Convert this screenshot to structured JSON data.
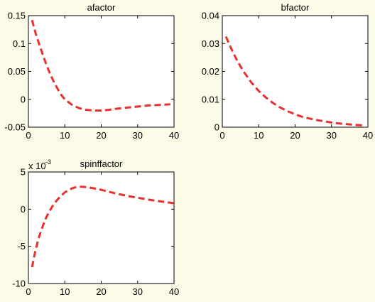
{
  "colors": {
    "background": "#fcfbe8",
    "line": "#e8302e"
  },
  "chart_data": [
    {
      "type": "line",
      "title": "afactor",
      "xlabel": "",
      "ylabel": "",
      "xlim": [
        0,
        40
      ],
      "ylim": [
        -0.05,
        0.15
      ],
      "xticks": [
        0,
        10,
        20,
        30,
        40
      ],
      "yticks": [
        -0.05,
        0,
        0.05,
        0.1,
        0.15
      ],
      "xtick_labels": [
        "0",
        "10",
        "20",
        "30",
        "40"
      ],
      "ytick_labels": [
        "-0.05",
        "0",
        "0.05",
        "0.1",
        "0.15"
      ],
      "grid": false,
      "series": [
        {
          "style": "dashed",
          "x": [
            1,
            2,
            3,
            4,
            5,
            6,
            7,
            8,
            9,
            10,
            12,
            14,
            16,
            18,
            20,
            22,
            24,
            27,
            30,
            33,
            36,
            39
          ],
          "y": [
            0.142,
            0.118,
            0.098,
            0.079,
            0.061,
            0.045,
            0.031,
            0.019,
            0.008,
            0.0,
            -0.01,
            -0.016,
            -0.019,
            -0.02,
            -0.02,
            -0.019,
            -0.017,
            -0.015,
            -0.013,
            -0.011,
            -0.01,
            -0.009
          ]
        }
      ]
    },
    {
      "type": "line",
      "title": "bfactor",
      "xlabel": "",
      "ylabel": "",
      "xlim": [
        0,
        40
      ],
      "ylim": [
        0,
        0.04
      ],
      "xticks": [
        0,
        10,
        20,
        30,
        40
      ],
      "yticks": [
        0,
        0.01,
        0.02,
        0.03,
        0.04
      ],
      "xtick_labels": [
        "0",
        "10",
        "20",
        "30",
        "40"
      ],
      "ytick_labels": [
        "0",
        "0.01",
        "0.02",
        "0.03",
        "0.04"
      ],
      "grid": false,
      "series": [
        {
          "style": "dashed",
          "x": [
            1,
            2,
            3,
            4,
            5,
            6,
            8,
            10,
            12,
            14,
            16,
            18,
            20,
            22,
            25,
            28,
            31,
            34,
            37,
            39
          ],
          "y": [
            0.0325,
            0.0295,
            0.0266,
            0.0241,
            0.0218,
            0.0197,
            0.016,
            0.013,
            0.0106,
            0.0086,
            0.007,
            0.0057,
            0.0046,
            0.0037,
            0.0028,
            0.0021,
            0.0015,
            0.0011,
            0.0008,
            0.0006
          ]
        }
      ]
    },
    {
      "type": "line",
      "title": "spinffactor",
      "xlabel": "",
      "ylabel": "",
      "y_multiplier": "x 10",
      "y_multiplier_exponent": "-3",
      "xlim": [
        0,
        40
      ],
      "ylim": [
        -10,
        5
      ],
      "xticks": [
        0,
        10,
        20,
        30,
        40
      ],
      "yticks": [
        -10,
        -5,
        0,
        5
      ],
      "xtick_labels": [
        "0",
        "10",
        "20",
        "30",
        "40"
      ],
      "ytick_labels": [
        "-10",
        "-5",
        "0",
        "5"
      ],
      "grid": false,
      "series": [
        {
          "style": "dashed",
          "x": [
            1,
            2,
            3,
            4,
            5,
            6,
            7,
            8,
            9,
            10,
            11,
            12,
            13,
            14,
            15,
            16,
            18,
            20,
            22,
            25,
            28,
            31,
            34,
            37,
            40
          ],
          "y": [
            -7.8,
            -5.4,
            -3.6,
            -2.2,
            -1.0,
            -0.1,
            0.7,
            1.3,
            1.8,
            2.25,
            2.55,
            2.8,
            2.95,
            3.0,
            3.0,
            2.95,
            2.8,
            2.6,
            2.35,
            2.0,
            1.7,
            1.45,
            1.2,
            1.0,
            0.8
          ]
        }
      ]
    }
  ]
}
